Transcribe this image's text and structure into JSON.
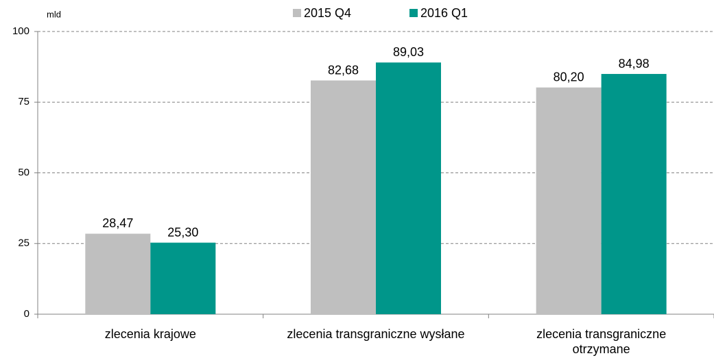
{
  "chart_data": {
    "type": "bar",
    "y_label": "mld",
    "categories": [
      "zlecenia krajowe",
      "zlecenia transgraniczne wysłane",
      "zlecenia transgraniczne otrzymane"
    ],
    "series": [
      {
        "name": "2015 Q4",
        "color": "#bfbfbf",
        "values": [
          28.47,
          82.68,
          80.2
        ],
        "value_labels": [
          "28,47",
          "82,68",
          "80,20"
        ]
      },
      {
        "name": "2016 Q1",
        "color": "#00968a",
        "values": [
          25.3,
          89.03,
          84.98
        ],
        "value_labels": [
          "25,30",
          "89,03",
          "84,98"
        ]
      }
    ],
    "ylim": [
      0,
      100
    ],
    "yticks": [
      0,
      25,
      50,
      75,
      100
    ],
    "grid": true,
    "legend": "top"
  }
}
